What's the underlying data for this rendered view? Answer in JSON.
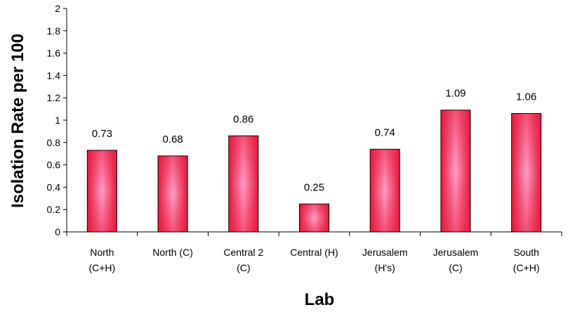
{
  "chart_data": {
    "type": "bar",
    "title": "",
    "xlabel": "Lab",
    "ylabel": "Isolation Rate per 100",
    "categories": [
      [
        "North",
        "(C+H)"
      ],
      [
        "North (C)"
      ],
      [
        "Central 2",
        "(C)"
      ],
      [
        "Central (H)"
      ],
      [
        "Jerusalem",
        "(H's)"
      ],
      [
        "Jerusalem",
        "(C)"
      ],
      [
        "South",
        "(C+H)"
      ]
    ],
    "values": [
      0.73,
      0.68,
      0.86,
      0.25,
      0.74,
      1.09,
      1.06
    ],
    "data_labels": [
      "0.73",
      "0.68",
      "0.86",
      "0.25",
      "0.74",
      "1.09",
      "1.06"
    ],
    "ylim": [
      0,
      2
    ],
    "yticks": [
      "0",
      "0.2",
      "0.4",
      "0.6",
      "0.8",
      "1",
      "1.2",
      "1.4",
      "1.6",
      "1.8",
      "2"
    ],
    "grid": false,
    "legend": "none",
    "colors": {
      "bar_edge": "#e8173a",
      "bar_center": "#ff9fc8",
      "bar_outline": "#000000",
      "axis": "#000000"
    }
  }
}
